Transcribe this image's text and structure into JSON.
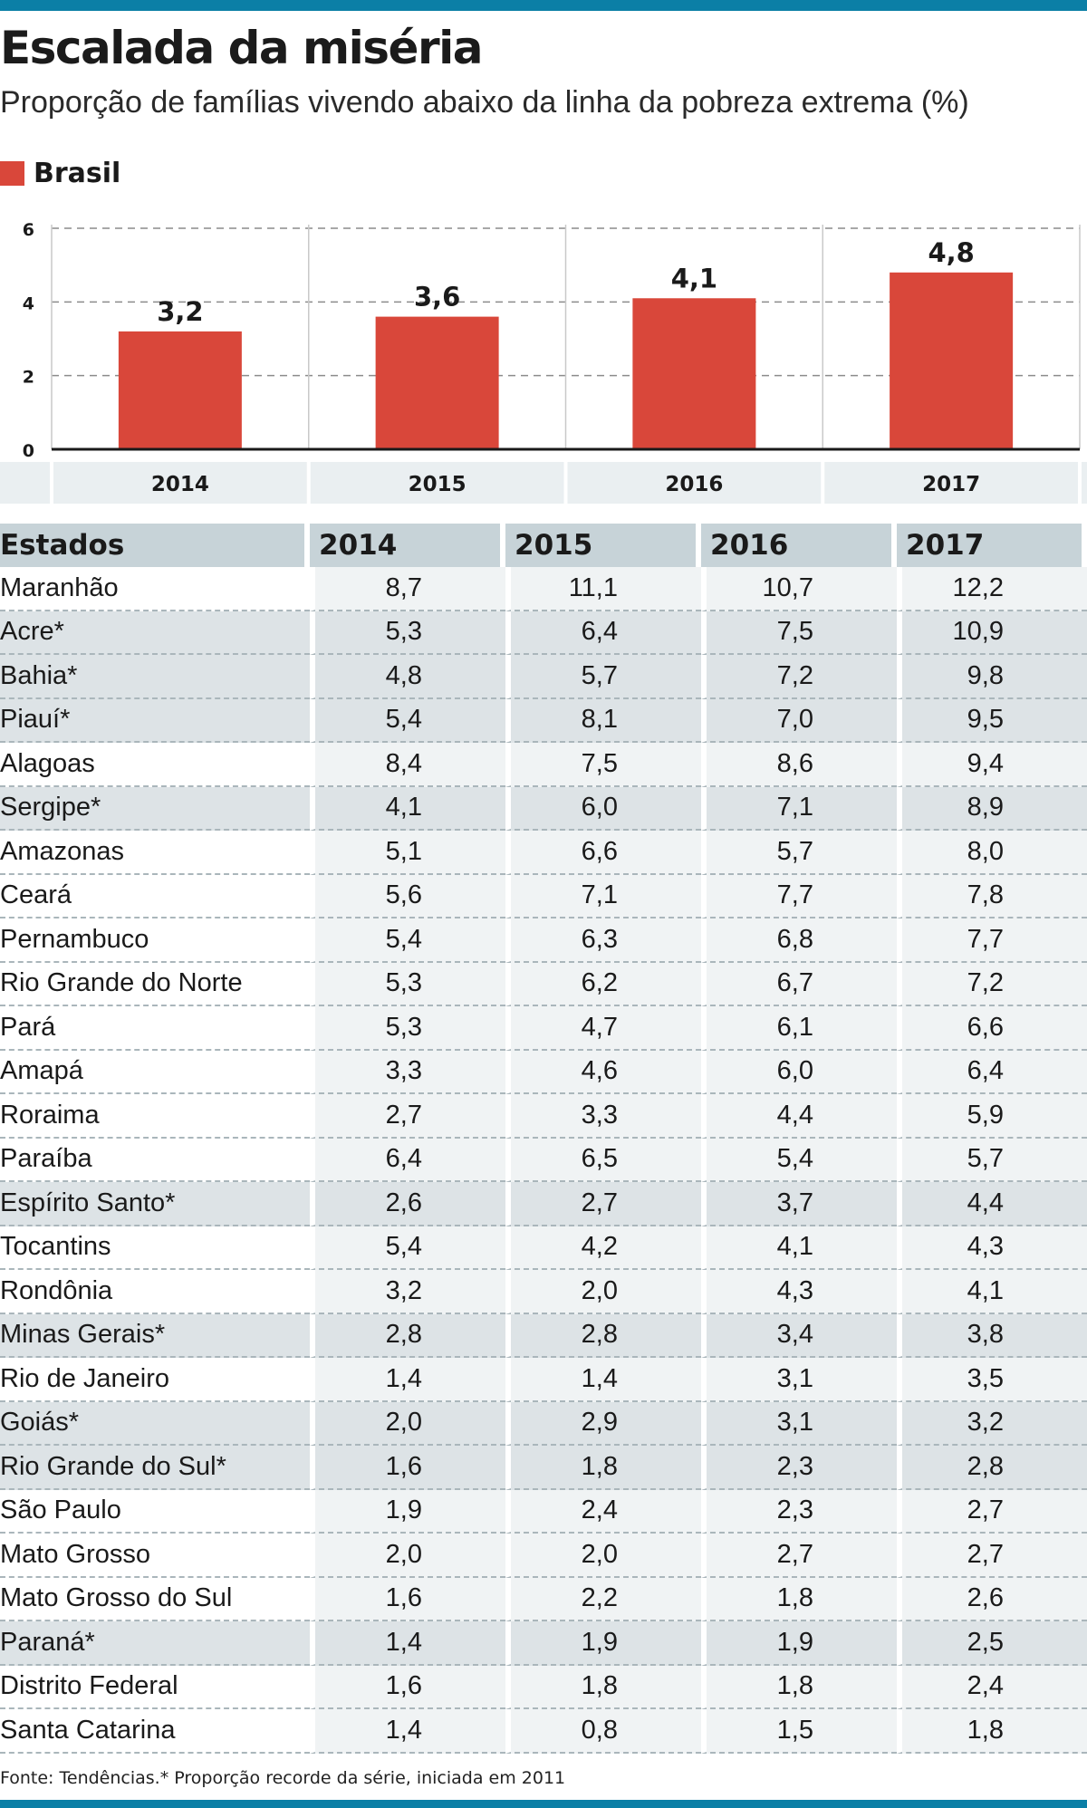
{
  "header": {
    "title": "Escalada da miséria",
    "subtitle": "Proporção de famílias vivendo abaixo da linha da pobreza extrema (%)"
  },
  "legend": {
    "label": "Brasil",
    "color": "#d9473a"
  },
  "chart_data": {
    "type": "bar",
    "title": "Escalada da miséria",
    "subtitle": "Proporção de famílias vivendo abaixo da linha da pobreza extrema (%)",
    "categories": [
      "2014",
      "2015",
      "2016",
      "2017"
    ],
    "series": [
      {
        "name": "Brasil",
        "values": [
          3.2,
          3.6,
          4.1,
          4.8
        ],
        "labels": [
          "3,2",
          "3,6",
          "4,1",
          "4,8"
        ],
        "color": "#d9473a"
      }
    ],
    "yticks": [
      "6",
      "4",
      "2",
      "0"
    ],
    "ylim": [
      0,
      6
    ],
    "grid": true,
    "xlabel": "",
    "ylabel": ""
  },
  "table": {
    "headers": [
      "Estados",
      "2014",
      "2015",
      "2016",
      "2017"
    ],
    "rows": [
      {
        "name": "Maranhão",
        "values": [
          "8,7",
          "11,1",
          "10,7",
          "12,2"
        ],
        "record": false
      },
      {
        "name": "Acre*",
        "values": [
          "5,3",
          "6,4",
          "7,5",
          "10,9"
        ],
        "record": true
      },
      {
        "name": "Bahia*",
        "values": [
          "4,8",
          "5,7",
          "7,2",
          "9,8"
        ],
        "record": true
      },
      {
        "name": "Piauí*",
        "values": [
          "5,4",
          "8,1",
          "7,0",
          "9,5"
        ],
        "record": true
      },
      {
        "name": "Alagoas",
        "values": [
          "8,4",
          "7,5",
          "8,6",
          "9,4"
        ],
        "record": false
      },
      {
        "name": "Sergipe*",
        "values": [
          "4,1",
          "6,0",
          "7,1",
          "8,9"
        ],
        "record": true
      },
      {
        "name": "Amazonas",
        "values": [
          "5,1",
          "6,6",
          "5,7",
          "8,0"
        ],
        "record": false
      },
      {
        "name": "Ceará",
        "values": [
          "5,6",
          "7,1",
          "7,7",
          "7,8"
        ],
        "record": false
      },
      {
        "name": "Pernambuco",
        "values": [
          "5,4",
          "6,3",
          "6,8",
          "7,7"
        ],
        "record": false
      },
      {
        "name": "Rio Grande do Norte",
        "values": [
          "5,3",
          "6,2",
          "6,7",
          "7,2"
        ],
        "record": false
      },
      {
        "name": "Pará",
        "values": [
          "5,3",
          "4,7",
          "6,1",
          "6,6"
        ],
        "record": false
      },
      {
        "name": "Amapá",
        "values": [
          "3,3",
          "4,6",
          "6,0",
          "6,4"
        ],
        "record": false
      },
      {
        "name": "Roraima",
        "values": [
          "2,7",
          "3,3",
          "4,4",
          "5,9"
        ],
        "record": false
      },
      {
        "name": "Paraíba",
        "values": [
          "6,4",
          "6,5",
          "5,4",
          "5,7"
        ],
        "record": false
      },
      {
        "name": "Espírito Santo*",
        "values": [
          "2,6",
          "2,7",
          "3,7",
          "4,4"
        ],
        "record": true
      },
      {
        "name": "Tocantins",
        "values": [
          "5,4",
          "4,2",
          "4,1",
          "4,3"
        ],
        "record": false
      },
      {
        "name": "Rondônia",
        "values": [
          "3,2",
          "2,0",
          "4,3",
          "4,1"
        ],
        "record": false
      },
      {
        "name": "Minas Gerais*",
        "values": [
          "2,8",
          "2,8",
          "3,4",
          "3,8"
        ],
        "record": true
      },
      {
        "name": "Rio de Janeiro",
        "values": [
          "1,4",
          "1,4",
          "3,1",
          "3,5"
        ],
        "record": false
      },
      {
        "name": "Goiás*",
        "values": [
          "2,0",
          "2,9",
          "3,1",
          "3,2"
        ],
        "record": true
      },
      {
        "name": "Rio Grande do Sul*",
        "values": [
          "1,6",
          "1,8",
          "2,3",
          "2,8"
        ],
        "record": true
      },
      {
        "name": "São Paulo",
        "values": [
          "1,9",
          "2,4",
          "2,3",
          "2,7"
        ],
        "record": false
      },
      {
        "name": "Mato Grosso",
        "values": [
          "2,0",
          "2,0",
          "2,7",
          "2,7"
        ],
        "record": false
      },
      {
        "name": "Mato Grosso do Sul",
        "values": [
          "1,6",
          "2,2",
          "1,8",
          "2,6"
        ],
        "record": false
      },
      {
        "name": "Paraná*",
        "values": [
          "1,4",
          "1,9",
          "1,9",
          "2,5"
        ],
        "record": true
      },
      {
        "name": "Distrito Federal",
        "values": [
          "1,6",
          "1,8",
          "1,8",
          "2,4"
        ],
        "record": false
      },
      {
        "name": "Santa Catarina",
        "values": [
          "1,4",
          "0,8",
          "1,5",
          "1,8"
        ],
        "record": false
      }
    ]
  },
  "footer": {
    "source": "Fonte: Tendências.* Proporção recorde da série, iniciada em 2011"
  },
  "colors": {
    "accent": "#0b7fa6",
    "bar": "#d9473a",
    "table_header": "#c7d3d8",
    "record_row": "#dde3e6"
  }
}
